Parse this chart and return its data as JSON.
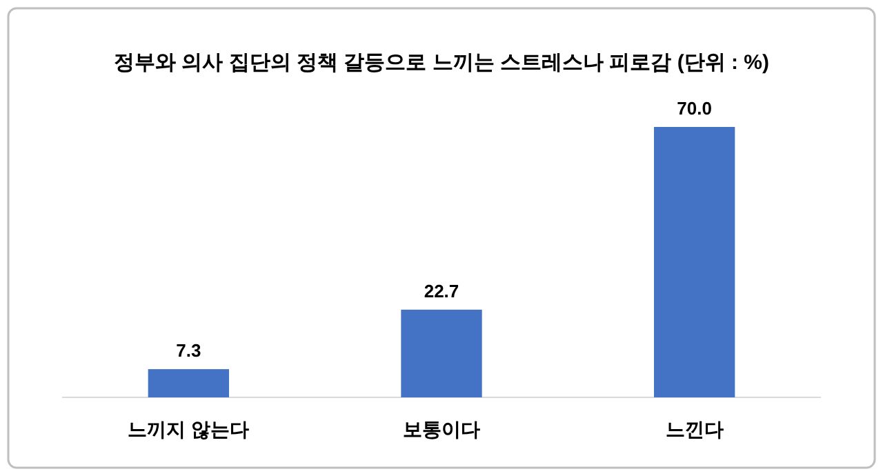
{
  "chart_data": {
    "type": "bar",
    "title": "정부와 의사 집단의 정책 갈등으로 느끼는 스트레스나 피로감 (단위 : %)",
    "categories": [
      "느끼지 않는다",
      "보통이다",
      "느낀다"
    ],
    "values": [
      7.3,
      22.7,
      70.0
    ],
    "value_labels": [
      "7.3",
      "22.7",
      "70.0"
    ],
    "color": "#4472c4"
  }
}
